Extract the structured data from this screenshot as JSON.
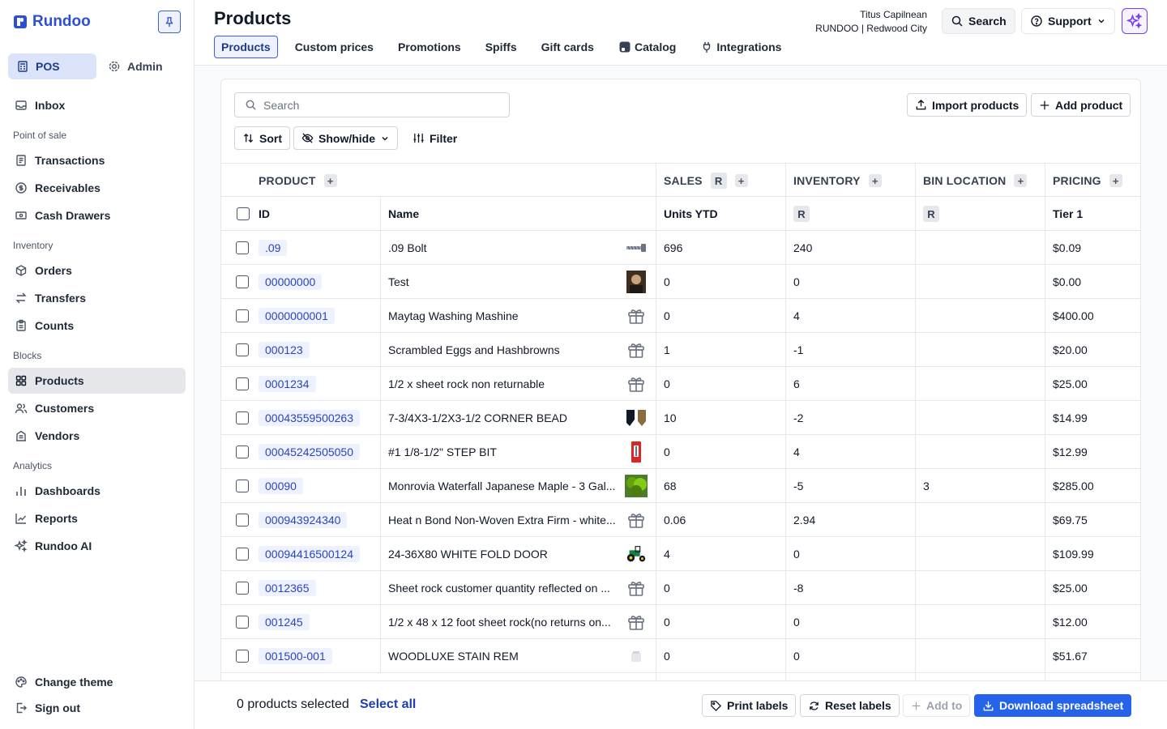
{
  "app": {
    "brand": "Rundoo"
  },
  "sidebar": {
    "modes": [
      {
        "label": "POS",
        "icon": "register-icon"
      },
      {
        "label": "Admin",
        "icon": "gear-icon"
      }
    ],
    "inbox": "Inbox",
    "sections": {
      "pos": "Point of sale",
      "inventory": "Inventory",
      "blocks": "Blocks",
      "analytics": "Analytics"
    },
    "items": {
      "transactions": "Transactions",
      "receivables": "Receivables",
      "cash_drawers": "Cash Drawers",
      "orders": "Orders",
      "transfers": "Transfers",
      "counts": "Counts",
      "products": "Products",
      "customers": "Customers",
      "vendors": "Vendors",
      "dashboards": "Dashboards",
      "reports": "Reports",
      "rundoo_ai": "Rundoo AI"
    },
    "change_theme": "Change theme",
    "sign_out": "Sign out"
  },
  "header": {
    "title": "Products",
    "tabs": [
      "Products",
      "Custom prices",
      "Promotions",
      "Spiffs",
      "Gift cards",
      "Catalog",
      "Integrations"
    ],
    "user_name": "Titus Capilnean",
    "store": "RUNDOO | Redwood City",
    "search_label": "Search",
    "support_label": "Support"
  },
  "toolbar": {
    "search_placeholder": "Search",
    "import_label": "Import products",
    "add_label": "Add product",
    "sort_label": "Sort",
    "showhide_label": "Show/hide",
    "filter_label": "Filter"
  },
  "table": {
    "groups": {
      "product": "PRODUCT",
      "sales": "SALES",
      "inventory": "INVENTORY",
      "bin": "BIN LOCATION",
      "pricing": "PRICING"
    },
    "r_marker": "R",
    "columns": {
      "id": "ID",
      "name": "Name",
      "units": "Units YTD",
      "tier": "Tier 1"
    },
    "rows": [
      {
        "id": ".09",
        "name": ".09 Bolt",
        "thumb": "bolt-image",
        "units": "696",
        "inventory": "240",
        "bin": "",
        "price": "$0.09"
      },
      {
        "id": "00000000",
        "name": "Test",
        "thumb": "photo-image",
        "units": "0",
        "inventory": "0",
        "bin": "",
        "price": "$0.00"
      },
      {
        "id": "0000000001",
        "name": "Maytag Washing Mashine",
        "thumb": "gift-icon",
        "units": "0",
        "inventory": "4",
        "bin": "",
        "price": "$400.00"
      },
      {
        "id": "000123",
        "name": "Scrambled Eggs and Hashbrowns",
        "thumb": "gift-icon",
        "units": "1",
        "inventory": "-1",
        "bin": "",
        "price": "$20.00"
      },
      {
        "id": "0001234",
        "name": "1/2 x sheet rock non returnable",
        "thumb": "gift-icon",
        "units": "0",
        "inventory": "6",
        "bin": "",
        "price": "$25.00"
      },
      {
        "id": "00043559500263",
        "name": "7-3/4X3-1/2X3-1/2 CORNER BEAD",
        "thumb": "corner-bead-image",
        "units": "10",
        "inventory": "-2",
        "bin": "",
        "price": "$14.99"
      },
      {
        "id": "00045242505050",
        "name": "#1 1/8-1/2\" STEP BIT",
        "thumb": "step-bit-image",
        "units": "0",
        "inventory": "4",
        "bin": "",
        "price": "$12.99"
      },
      {
        "id": "00090",
        "name": "Monrovia Waterfall Japanese Maple - 3 Gal...",
        "thumb": "plant-image",
        "units": "68",
        "inventory": "-5",
        "bin": "3",
        "price": "$285.00"
      },
      {
        "id": "000943924340",
        "name": "Heat n Bond Non-Woven Extra Firm - white...",
        "thumb": "gift-icon",
        "units": "0.06",
        "inventory": "2.94",
        "bin": "",
        "price": "$69.75"
      },
      {
        "id": "00094416500124",
        "name": "24-36X80 WHITE FOLD DOOR",
        "thumb": "tractor-image",
        "units": "4",
        "inventory": "0",
        "bin": "",
        "price": "$109.99"
      },
      {
        "id": "0012365",
        "name": "Sheet rock customer quantity reflected on ...",
        "thumb": "gift-icon",
        "units": "0",
        "inventory": "-8",
        "bin": "",
        "price": "$25.00"
      },
      {
        "id": "001245",
        "name": "1/2 x 48 x 12 foot sheet rock(no returns on...",
        "thumb": "gift-icon",
        "units": "0",
        "inventory": "0",
        "bin": "",
        "price": "$12.00"
      },
      {
        "id": "001500-001",
        "name": "WOODLUXE STAIN REM",
        "thumb": "can-image",
        "units": "0",
        "inventory": "0",
        "bin": "",
        "price": "$51.67"
      }
    ]
  },
  "footer": {
    "selected_text": "0 products selected",
    "select_all": "Select all",
    "print_labels": "Print labels",
    "reset_labels": "Reset labels",
    "add_to": "Add to",
    "download": "Download spreadsheet"
  },
  "colors": {
    "accent": "#2563eb",
    "brand": "#2b4fd6",
    "ai": "#7c3aed"
  }
}
